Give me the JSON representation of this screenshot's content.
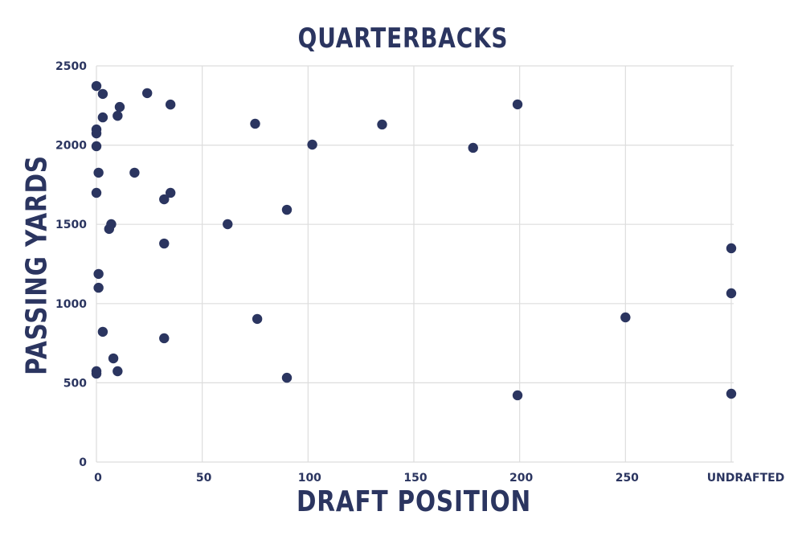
{
  "chart_data": {
    "type": "scatter",
    "title": "QUARTERBACKS",
    "xlabel": "DRAFT POSITION",
    "ylabel": "PASSING YARDS",
    "xlim": [
      0,
      300
    ],
    "ylim": [
      0,
      2500
    ],
    "x_ticks": [
      {
        "value": 0,
        "label": "0"
      },
      {
        "value": 50,
        "label": "50"
      },
      {
        "value": 100,
        "label": "100"
      },
      {
        "value": 150,
        "label": "150"
      },
      {
        "value": 200,
        "label": "200"
      },
      {
        "value": 250,
        "label": "250"
      },
      {
        "value": 300,
        "label": "UNDRAFTED"
      }
    ],
    "y_ticks": [
      0,
      500,
      1000,
      1500,
      2000,
      2500
    ],
    "grid": true,
    "legend": null,
    "marker_color": "#2b3560",
    "grid_color": "#dddddd",
    "series": [
      {
        "name": "Quarterbacks",
        "points": [
          {
            "x": 0,
            "y": 2373
          },
          {
            "x": 3,
            "y": 2323
          },
          {
            "x": 24,
            "y": 2328
          },
          {
            "x": 11,
            "y": 2241
          },
          {
            "x": 35,
            "y": 2256
          },
          {
            "x": 10,
            "y": 2185
          },
          {
            "x": 3,
            "y": 2175
          },
          {
            "x": 0,
            "y": 2099
          },
          {
            "x": 0,
            "y": 2074
          },
          {
            "x": 0,
            "y": 1993
          },
          {
            "x": 75,
            "y": 2135
          },
          {
            "x": 102,
            "y": 2003
          },
          {
            "x": 135,
            "y": 2130
          },
          {
            "x": 178,
            "y": 1983
          },
          {
            "x": 199,
            "y": 2257
          },
          {
            "x": 1,
            "y": 1826
          },
          {
            "x": 18,
            "y": 1826
          },
          {
            "x": 0,
            "y": 1699
          },
          {
            "x": 32,
            "y": 1658
          },
          {
            "x": 35,
            "y": 1699
          },
          {
            "x": 7,
            "y": 1501
          },
          {
            "x": 6,
            "y": 1471
          },
          {
            "x": 32,
            "y": 1379
          },
          {
            "x": 62,
            "y": 1501
          },
          {
            "x": 90,
            "y": 1592
          },
          {
            "x": 1,
            "y": 1187
          },
          {
            "x": 1,
            "y": 1100
          },
          {
            "x": 3,
            "y": 822
          },
          {
            "x": 8,
            "y": 654
          },
          {
            "x": 0,
            "y": 573
          },
          {
            "x": 0,
            "y": 558
          },
          {
            "x": 10,
            "y": 573
          },
          {
            "x": 32,
            "y": 781
          },
          {
            "x": 76,
            "y": 903
          },
          {
            "x": 90,
            "y": 532
          },
          {
            "x": 250,
            "y": 913
          },
          {
            "x": 199,
            "y": 421
          },
          {
            "x": 300,
            "y": 1349,
            "label": "UNDRAFTED"
          },
          {
            "x": 300,
            "y": 1065,
            "label": "UNDRAFTED"
          },
          {
            "x": 300,
            "y": 431,
            "label": "UNDRAFTED"
          }
        ]
      }
    ]
  }
}
